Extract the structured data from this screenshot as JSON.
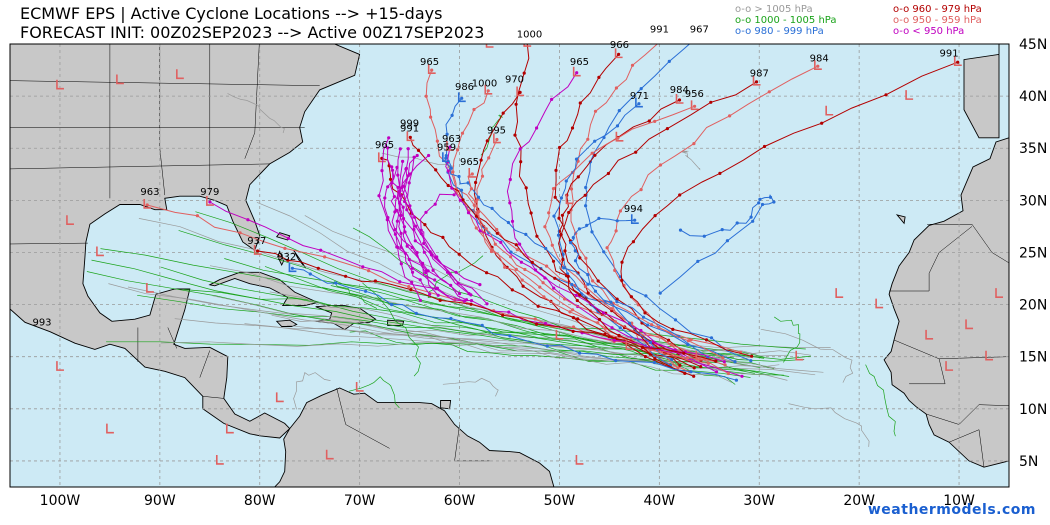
{
  "header": {
    "title_line1": "ECMWF EPS | Active Cyclone Locations --> +15-days",
    "title_line2": "FORECAST INIT: 00Z02SEP2023 --> Active 00Z17SEP2023"
  },
  "legend": [
    {
      "text": "o-o > 1005 hPa",
      "color": "#9a9a9a"
    },
    {
      "text": "o-o 1000 - 1005 hPa",
      "color": "#1aa31a"
    },
    {
      "text": "o-o 980 - 999 hPa",
      "color": "#2a6fd6"
    },
    {
      "text": "o-o 960 - 979 hPa",
      "color": "#b30000"
    },
    {
      "text": "o-o 950 - 959 hPa",
      "color": "#e06060"
    },
    {
      "text": "o-o < 950 hPa",
      "color": "#c000c0"
    }
  ],
  "map": {
    "lon_range": [
      -105,
      -5
    ],
    "lat_range": [
      2.5,
      45
    ],
    "ocean_color": "#cdeaf5",
    "land_color": "#c8c8c8",
    "lat_ticks": [
      "5N",
      "10N",
      "15N",
      "20N",
      "25N",
      "30N",
      "35N",
      "40N",
      "45N"
    ],
    "lat_values": [
      5,
      10,
      15,
      20,
      25,
      30,
      35,
      40,
      45
    ],
    "lon_ticks": [
      "100W",
      "90W",
      "80W",
      "70W",
      "60W",
      "50W",
      "40W",
      "30W",
      "20W",
      "10W"
    ],
    "lon_values": [
      -100,
      -90,
      -80,
      -70,
      -60,
      -50,
      -40,
      -30,
      -20,
      -10
    ]
  },
  "pressure_labels": [
    {
      "text": "1000",
      "lon": -53,
      "lat": 45.6
    },
    {
      "text": "991",
      "lon": -40,
      "lat": 46.1
    },
    {
      "text": "967",
      "lon": -36,
      "lat": 46.1
    },
    {
      "text": "966",
      "lon": -44,
      "lat": 44.6
    },
    {
      "text": "991",
      "lon": -11,
      "lat": 43.8
    },
    {
      "text": "984",
      "lon": -24,
      "lat": 43.3
    },
    {
      "text": "987",
      "lon": -30,
      "lat": 41.9
    },
    {
      "text": "965",
      "lon": -63,
      "lat": 43
    },
    {
      "text": "965",
      "lon": -48,
      "lat": 43
    },
    {
      "text": "970",
      "lon": -54.5,
      "lat": 41.3
    },
    {
      "text": "986",
      "lon": -59.5,
      "lat": 40.6
    },
    {
      "text": "1000",
      "lon": -57.5,
      "lat": 40.9
    },
    {
      "text": "984",
      "lon": -38,
      "lat": 40.3
    },
    {
      "text": "956",
      "lon": -36.5,
      "lat": 39.9
    },
    {
      "text": "971",
      "lon": -42,
      "lat": 39.7
    },
    {
      "text": "999",
      "lon": -65,
      "lat": 37.1
    },
    {
      "text": "991",
      "lon": -65,
      "lat": 36.6
    },
    {
      "text": "995",
      "lon": -56.3,
      "lat": 36.4
    },
    {
      "text": "963",
      "lon": -60.8,
      "lat": 35.6
    },
    {
      "text": "965",
      "lon": -67.5,
      "lat": 35
    },
    {
      "text": "959",
      "lon": -61.3,
      "lat": 34.8
    },
    {
      "text": "965",
      "lon": -59,
      "lat": 33.4
    },
    {
      "text": "963",
      "lon": -91,
      "lat": 30.5
    },
    {
      "text": "979",
      "lon": -85,
      "lat": 30.5
    },
    {
      "text": "994",
      "lon": -42.6,
      "lat": 28.9
    },
    {
      "text": "937",
      "lon": -80.3,
      "lat": 25.8
    },
    {
      "text": "932",
      "lon": -77.3,
      "lat": 24.3
    },
    {
      "text": "993",
      "lon": -101.8,
      "lat": 18
    }
  ],
  "credit": "weathermodels.com"
}
